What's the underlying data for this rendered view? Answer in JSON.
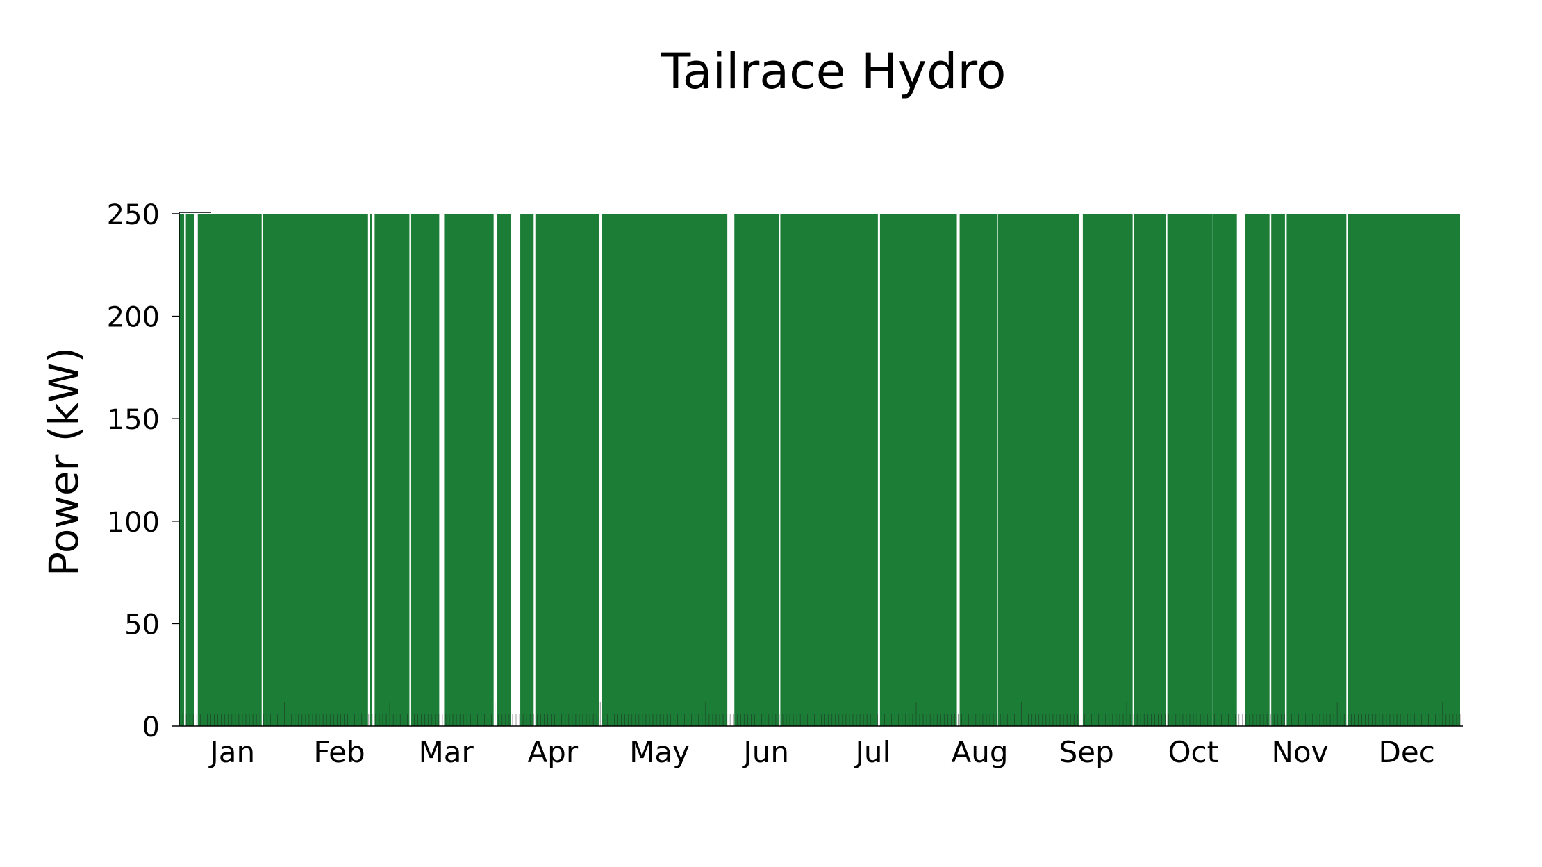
{
  "chart_data": {
    "type": "area",
    "title": "Tailrace Hydro",
    "xlabel": "",
    "ylabel": "Power (kW)",
    "ylim": [
      0,
      250
    ],
    "y_ticks": [
      0,
      50,
      100,
      150,
      200,
      250
    ],
    "x_tick_labels": [
      "Jan",
      "Feb",
      "Mar",
      "Apr",
      "May",
      "Jun",
      "Jul",
      "Aug",
      "Sep",
      "Oct",
      "Nov",
      "Dec"
    ],
    "xlim_days": [
      0,
      365
    ],
    "grid": false,
    "legend": false,
    "color": "#1b7d36",
    "series": [
      {
        "values_day_ranges_at_max": [
          [
            0.0,
            1.4
          ],
          [
            1.9,
            4.2
          ],
          [
            5.3,
            23.5
          ],
          [
            23.8,
            53.8
          ],
          [
            54.4,
            54.9
          ],
          [
            55.7,
            65.6
          ],
          [
            65.9,
            74.1
          ],
          [
            75.5,
            89.6
          ],
          [
            90.5,
            94.6
          ],
          [
            97.2,
            101.0
          ],
          [
            101.5,
            119.6
          ],
          [
            120.5,
            156.2
          ],
          [
            158.2,
            171.0
          ],
          [
            171.3,
            199.1
          ],
          [
            199.7,
            221.6
          ],
          [
            222.4,
            233.0
          ],
          [
            233.3,
            256.5
          ],
          [
            257.5,
            271.7
          ],
          [
            272.0,
            281.1
          ],
          [
            281.6,
            294.5
          ],
          [
            294.7,
            301.4
          ],
          [
            303.7,
            310.7
          ],
          [
            311.2,
            315.1
          ],
          [
            315.6,
            332.6
          ],
          [
            333.0,
            365.0
          ]
        ],
        "peak_value": 250,
        "off_value": 0
      }
    ]
  }
}
